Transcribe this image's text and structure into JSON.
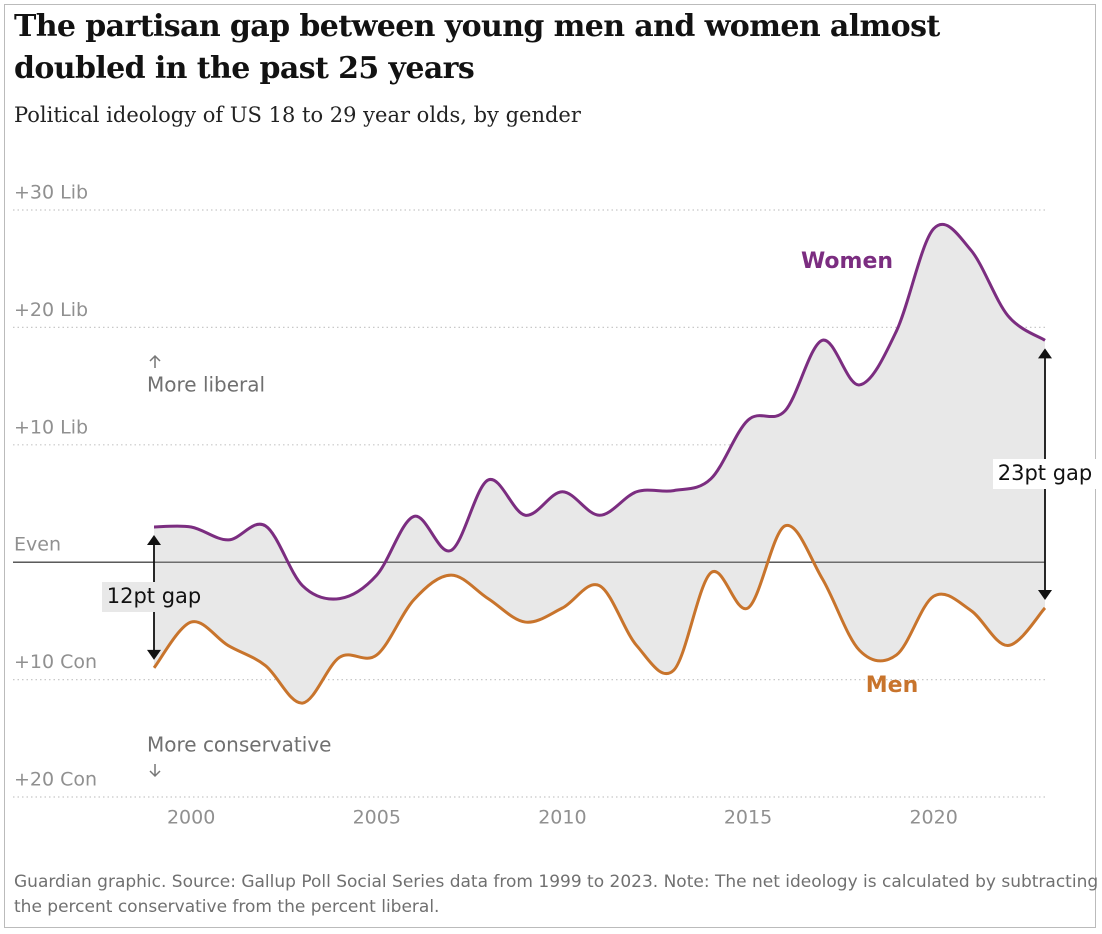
{
  "chart_data": {
    "type": "line",
    "title": "The partisan gap between young men and women almost doubled in the past 25 years",
    "subtitle": "Political ideology of US 18 to 29 year olds, by gender",
    "note": "Guardian graphic. Source: Gallup Poll Social Series data from 1999 to 2023. Note: The net ideology is calculated by subtracting the percent conservative from the percent liberal.",
    "x": [
      1999,
      2000,
      2001,
      2002,
      2003,
      2004,
      2005,
      2006,
      2007,
      2008,
      2009,
      2010,
      2011,
      2012,
      2013,
      2014,
      2015,
      2016,
      2017,
      2018,
      2019,
      2020,
      2021,
      2022,
      2023
    ],
    "series": [
      {
        "name": "Women",
        "color": "#7b2d80",
        "values": [
          3.0,
          3.0,
          1.9,
          3.1,
          -2.0,
          -3.1,
          -1.1,
          3.9,
          1.0,
          7.0,
          4.0,
          6.0,
          4.0,
          6.0,
          6.1,
          7.1,
          12.1,
          12.9,
          18.9,
          15.1,
          19.7,
          28.4,
          26.6,
          21.0,
          18.9
        ]
      },
      {
        "name": "Men",
        "color": "#c8742c",
        "values": [
          -9.0,
          -5.1,
          -7.1,
          -8.8,
          -12.0,
          -8.1,
          -7.9,
          -3.2,
          -1.1,
          -3.1,
          -5.1,
          -3.9,
          -2.0,
          -7.1,
          -9.2,
          -0.9,
          -3.9,
          3.1,
          -1.4,
          -7.5,
          -7.9,
          -2.9,
          -4.1,
          -7.1,
          -3.9
        ]
      }
    ],
    "fill_between": true,
    "fill_color": "#e8e8e8",
    "xlim": [
      1999,
      2023
    ],
    "xticks": [
      2000,
      2005,
      2010,
      2015,
      2020
    ],
    "ylim": [
      -20,
      30
    ],
    "yticks": [
      {
        "value": 30,
        "label": "+30 Lib"
      },
      {
        "value": 20,
        "label": "+20 Lib"
      },
      {
        "value": 10,
        "label": "+10 Lib"
      },
      {
        "value": 0,
        "label": "Even"
      },
      {
        "value": -10,
        "label": "+10 Con"
      },
      {
        "value": -20,
        "label": "+20 Con"
      }
    ],
    "grid": true,
    "annotations": {
      "up": "More liberal",
      "down": "More conservative",
      "gap_start": "12pt gap",
      "gap_end": "23pt gap"
    }
  }
}
